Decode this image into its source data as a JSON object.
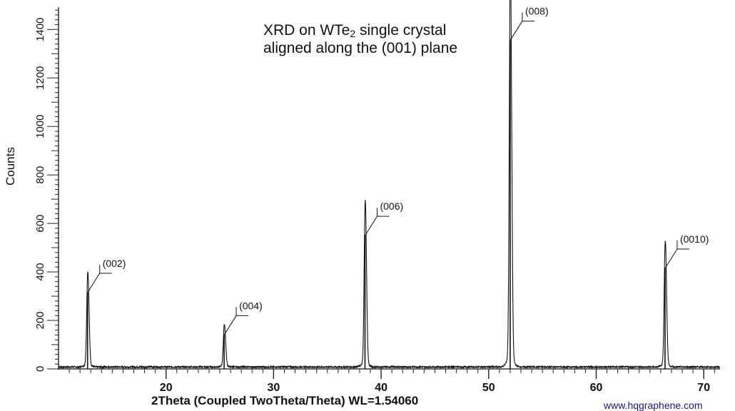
{
  "chart_data": {
    "type": "line",
    "title": "XRD on WTe2 single crystal aligned along the (001) plane",
    "title_lines": [
      "XRD on WTe",
      "2",
      " single crystal",
      "aligned along the (001) plane"
    ],
    "xlabel": "2Theta (Coupled TwoTheta/Theta) WL=1.54060",
    "ylabel": "Counts",
    "xlim": [
      10,
      71.5
    ],
    "ylim": [
      0,
      1480
    ],
    "x_ticks": [
      20,
      30,
      40,
      50,
      60,
      70
    ],
    "y_ticks": [
      0,
      200,
      400,
      600,
      800,
      1000,
      1200,
      1400
    ],
    "grid": false,
    "legend": null,
    "baseline_counts": 5,
    "peaks": [
      {
        "label": "(002)",
        "two_theta": 12.7,
        "counts": 315
      },
      {
        "label": "(004)",
        "two_theta": 25.4,
        "counts": 140
      },
      {
        "label": "(006)",
        "two_theta": 38.5,
        "counts": 550
      },
      {
        "label": "(008)",
        "two_theta": 52.0,
        "counts": 1355
      },
      {
        "label": "(0010)",
        "two_theta": 66.4,
        "counts": 415
      }
    ],
    "series": [
      {
        "name": "XRD pattern",
        "x": [
          10,
          12.4,
          12.6,
          12.7,
          12.8,
          13.0,
          25.2,
          25.35,
          25.4,
          25.45,
          25.6,
          38.2,
          38.4,
          38.5,
          38.6,
          38.8,
          51.7,
          51.9,
          52.0,
          52.1,
          52.3,
          66.1,
          66.3,
          66.4,
          66.5,
          66.6,
          66.8,
          71.5
        ],
        "y": [
          5,
          5,
          60,
          315,
          200,
          5,
          5,
          40,
          140,
          60,
          5,
          5,
          120,
          550,
          480,
          5,
          5,
          300,
          1355,
          580,
          5,
          5,
          60,
          415,
          230,
          180,
          5,
          5
        ]
      }
    ]
  },
  "watermark": "www.hqgraphene.com"
}
